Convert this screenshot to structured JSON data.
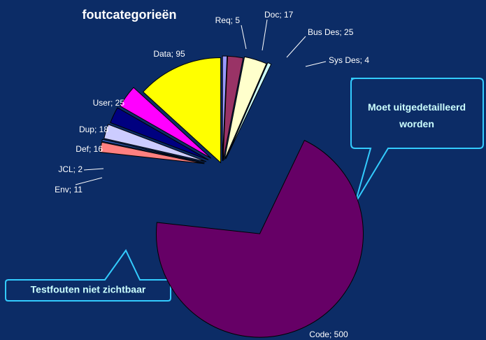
{
  "chart_data": {
    "type": "pie",
    "title": "foutcategorieën",
    "values": [
      5,
      17,
      25,
      4,
      500,
      11,
      2,
      16,
      18,
      25,
      95
    ],
    "value_labels": [
      "Req; 5",
      "Doc; 17",
      "Bus Des; 25",
      "Sys Des; 4",
      "Code; 500",
      "Env; 11",
      "JCL; 2",
      "Def; 16",
      "Dup; 18",
      "User; 25",
      "Data; 95"
    ],
    "colors": [
      "#9999ff",
      "#993366",
      "#ffffcc",
      "#ccffff",
      "#660066",
      "#ff8080",
      "#3366cc",
      "#ccccff",
      "#000080",
      "#ff00ff",
      "#ffff00"
    ],
    "annotations": [
      "Moet uitgedetailleerd worden",
      "Testfouten niet zichtbaar"
    ]
  }
}
